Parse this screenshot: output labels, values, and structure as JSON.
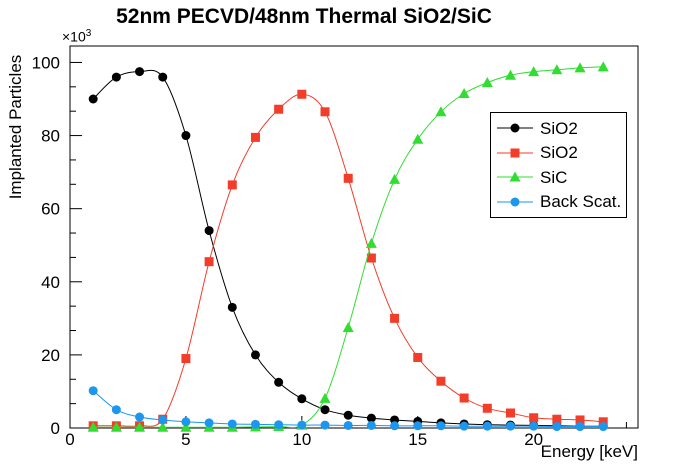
{
  "chart_data": {
    "type": "line",
    "title": "52nm PECVD/48nm Thermal SiO2/SiC",
    "xlabel": "Energy [keV]",
    "ylabel": "Implanted Particles",
    "y_exponent": "×10",
    "y_exponent_sup": "3",
    "values_unit": "thousands of particles",
    "xlim": [
      0,
      24.5
    ],
    "ylim": [
      0,
      104.5
    ],
    "x_major_ticks": [
      0,
      5,
      10,
      15,
      20
    ],
    "x_minor_step": 1,
    "y_major_ticks": [
      0,
      20,
      40,
      60,
      80,
      100
    ],
    "y_minor_divisions": 3,
    "grid": false,
    "legend_position": "middle-right",
    "frame_color": "#000000",
    "x": [
      1,
      2,
      3,
      4,
      5,
      6,
      7,
      8,
      9,
      10,
      11,
      12,
      13,
      14,
      15,
      16,
      17,
      18,
      19,
      20,
      21,
      22,
      23
    ],
    "series": [
      {
        "name": "SiO2",
        "color": "#000000",
        "marker": "circle",
        "values": [
          90,
          96,
          97.5,
          96,
          80,
          54,
          33,
          20,
          12.5,
          8,
          5,
          3.5,
          2.7,
          2.2,
          1.8,
          1.4,
          1.1,
          0.9,
          0.8,
          0.7,
          0.6,
          0.5,
          0.5
        ]
      },
      {
        "name": "SiO2",
        "color": "#f23d2a",
        "marker": "square",
        "values": [
          0.6,
          0.6,
          0.6,
          2.4,
          19,
          45.5,
          66.5,
          79.5,
          87.2,
          91.3,
          86.5,
          68.3,
          46.5,
          30,
          19.3,
          12.8,
          8.2,
          5.4,
          4.1,
          2.8,
          2.4,
          2.2,
          1.7
        ]
      },
      {
        "name": "SiC",
        "color": "#32dd32",
        "marker": "triangle",
        "values": [
          0.2,
          0.2,
          0.2,
          0.2,
          0.2,
          0.2,
          0.2,
          0.3,
          0.4,
          0.8,
          8.1,
          27.5,
          50.5,
          68,
          79,
          86.5,
          91.5,
          94.5,
          96.5,
          97.5,
          98,
          98.5,
          98.8
        ]
      },
      {
        "name": "Back Scat.",
        "color": "#1d96ee",
        "marker": "circle",
        "values": [
          10.2,
          5,
          3,
          2.2,
          1.7,
          1.4,
          1.1,
          1.0,
          0.9,
          0.8,
          0.8,
          0.7,
          0.7,
          0.6,
          0.6,
          0.6,
          0.5,
          0.5,
          0.5,
          0.5,
          0.4,
          0.4,
          0.4
        ]
      }
    ]
  }
}
